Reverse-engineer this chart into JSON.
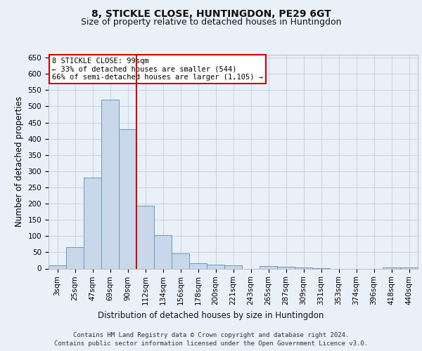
{
  "title1": "8, STICKLE CLOSE, HUNTINGDON, PE29 6GT",
  "title2": "Size of property relative to detached houses in Huntingdon",
  "xlabel": "Distribution of detached houses by size in Huntingdon",
  "ylabel": "Number of detached properties",
  "categories": [
    "3sqm",
    "25sqm",
    "47sqm",
    "69sqm",
    "90sqm",
    "112sqm",
    "134sqm",
    "156sqm",
    "178sqm",
    "200sqm",
    "221sqm",
    "243sqm",
    "265sqm",
    "287sqm",
    "309sqm",
    "331sqm",
    "353sqm",
    "374sqm",
    "396sqm",
    "418sqm",
    "440sqm"
  ],
  "values": [
    9,
    65,
    280,
    520,
    430,
    193,
    103,
    46,
    17,
    12,
    10,
    0,
    8,
    5,
    4,
    1,
    0,
    0,
    0,
    4,
    3
  ],
  "bar_color": "#c8d8ea",
  "bar_edge_color": "#6699bb",
  "vline_index": 4,
  "vline_color": "#cc0000",
  "annotation_text": "8 STICKLE CLOSE: 99sqm\n← 33% of detached houses are smaller (544)\n66% of semi-detached houses are larger (1,105) →",
  "annotation_box_facecolor": "#ffffff",
  "annotation_box_edgecolor": "#cc0000",
  "ylim": [
    0,
    660
  ],
  "yticks": [
    0,
    50,
    100,
    150,
    200,
    250,
    300,
    350,
    400,
    450,
    500,
    550,
    600,
    650
  ],
  "bg_color": "#eaf0f8",
  "plot_bg_color": "#eaf0f8",
  "grid_color": "#b8c8d8",
  "footer1": "Contains HM Land Registry data © Crown copyright and database right 2024.",
  "footer2": "Contains public sector information licensed under the Open Government Licence v3.0.",
  "title1_fontsize": 10,
  "title2_fontsize": 9,
  "xlabel_fontsize": 8.5,
  "ylabel_fontsize": 8.5,
  "tick_fontsize": 7.5,
  "annotation_fontsize": 7.5,
  "footer_fontsize": 6.5
}
